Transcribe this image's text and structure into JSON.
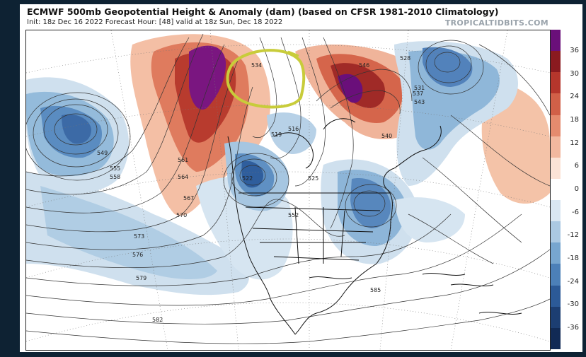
{
  "header": {
    "title": "ECMWF 500mb Geopotential Height & Anomaly (dam) (based on CFSR 1981-2010 Climatology)",
    "subtitle": "Init: 18z Dec 16 2022   Forecast Hour: [48]   valid at 18z Sun, Dec 18 2022",
    "brand": "TROPICALTIDBITS.COM"
  },
  "colorbar": {
    "labels": [
      "36",
      "30",
      "24",
      "18",
      "12",
      "6",
      "0",
      "-6",
      "-12",
      "-18",
      "-24",
      "-30",
      "-36"
    ],
    "colors": [
      "#6a0f7a",
      "#8a1a1f",
      "#b5362c",
      "#d16048",
      "#e58b6e",
      "#f2b89f",
      "#fbe3d6",
      "#ffffff",
      "#d9e7f2",
      "#abc9e2",
      "#77a6cf",
      "#4c80b8",
      "#2c5a97",
      "#1c3e72",
      "#112a55"
    ]
  },
  "contour_labels": [
    "534",
    "528",
    "537",
    "540",
    "543",
    "546",
    "531",
    "549",
    "552",
    "555",
    "558",
    "561",
    "564",
    "567",
    "570",
    "573",
    "576",
    "579",
    "582",
    "585",
    "516",
    "522",
    "525",
    "519"
  ],
  "annotation": {
    "color": "#c8cc3a"
  }
}
